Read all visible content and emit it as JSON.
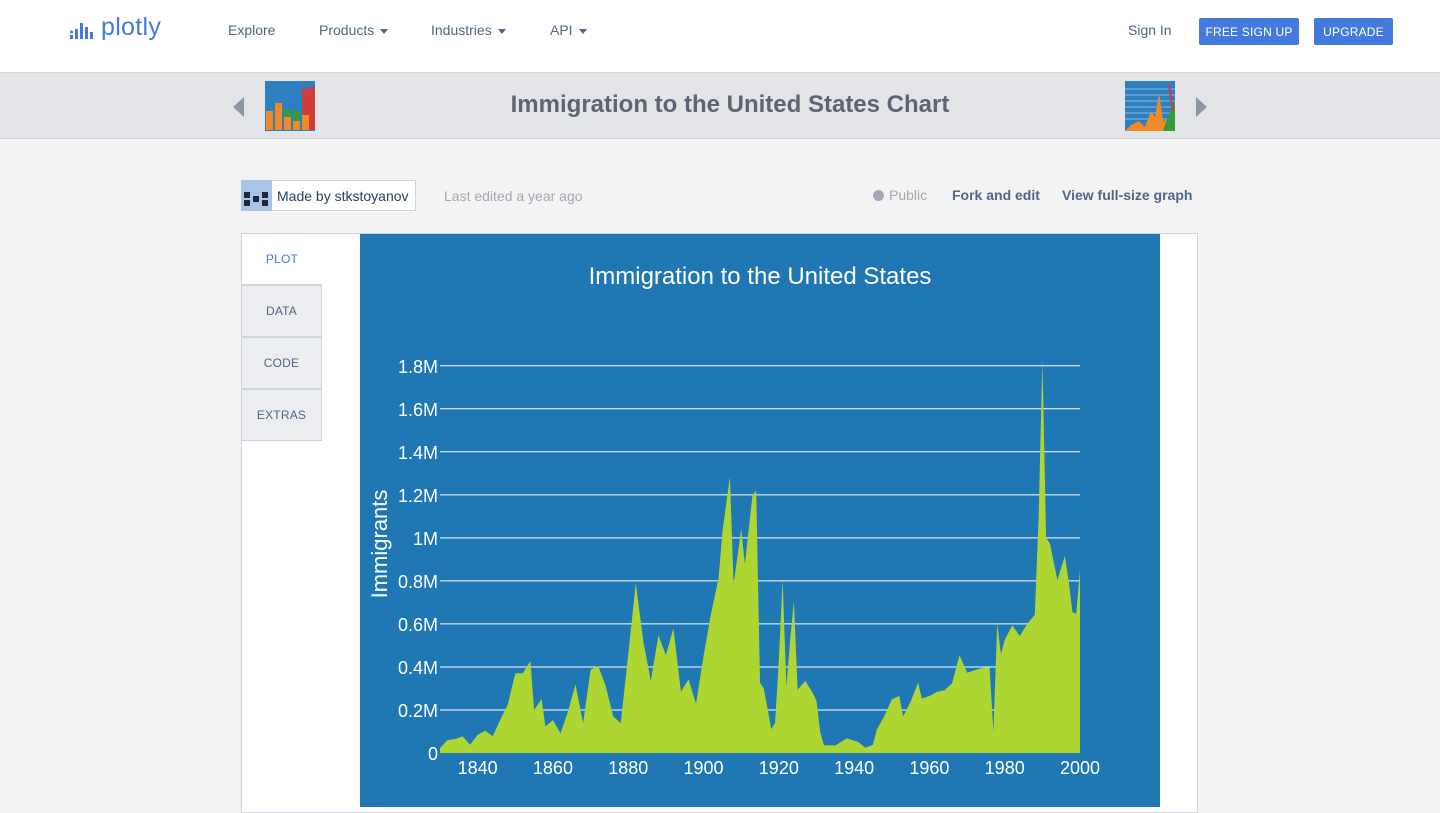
{
  "nav": {
    "logo_text": "plotly",
    "items": [
      "Explore",
      "Products",
      "Industries",
      "API"
    ],
    "sign_in": "Sign In",
    "free_signup": "FREE SIGN UP",
    "upgrade": "UPGRADE"
  },
  "subbar": {
    "title": "Immigration to the United States Chart"
  },
  "meta": {
    "made_by": "Made by stkstoyanov",
    "last_edited": "Last edited a year ago",
    "visibility": "Public",
    "fork": "Fork and edit",
    "view_full": "View full-size graph"
  },
  "tabs": [
    "PLOT",
    "DATA",
    "CODE",
    "EXTRAS"
  ],
  "colors": {
    "accent": "#447adb",
    "plot_bg": "#1f77b4",
    "area_fill": "#add633"
  },
  "chart_data": {
    "type": "area",
    "title": "Immigration to the United States",
    "xlabel": "",
    "ylabel": "Immigrants",
    "xlim": [
      1830,
      2000
    ],
    "ylim": [
      0,
      1850000
    ],
    "grid": true,
    "x_ticks": [
      "1840",
      "1860",
      "1880",
      "1900",
      "1920",
      "1940",
      "1960",
      "1980",
      "2000"
    ],
    "y_ticks": [
      "0",
      "0.2M",
      "0.4M",
      "0.6M",
      "0.8M",
      "1M",
      "1.2M",
      "1.4M",
      "1.6M",
      "1.8M"
    ],
    "series": [
      {
        "name": "Immigrants",
        "x": [
          1830,
          1832,
          1834,
          1836,
          1838,
          1840,
          1842,
          1844,
          1846,
          1848,
          1850,
          1852,
          1854,
          1855,
          1857,
          1858,
          1860,
          1862,
          1864,
          1866,
          1868,
          1870,
          1872,
          1874,
          1876,
          1878,
          1880,
          1882,
          1884,
          1886,
          1888,
          1890,
          1892,
          1894,
          1896,
          1898,
          1900,
          1902,
          1904,
          1905,
          1907,
          1908,
          1910,
          1911,
          1913,
          1914,
          1915,
          1916,
          1918,
          1919,
          1920,
          1921,
          1922,
          1923,
          1924,
          1925,
          1927,
          1929,
          1930,
          1931,
          1932,
          1935,
          1938,
          1941,
          1943,
          1945,
          1946,
          1948,
          1950,
          1952,
          1953,
          1955,
          1957,
          1958,
          1960,
          1962,
          1964,
          1966,
          1968,
          1970,
          1972,
          1974,
          1976,
          1977,
          1978,
          1979,
          1980,
          1982,
          1984,
          1986,
          1988,
          1989,
          1990,
          1991,
          1992,
          1994,
          1996,
          1997,
          1998,
          1999,
          2000
        ],
        "values": [
          23000,
          60000,
          65000,
          77000,
          38000,
          84000,
          104000,
          78000,
          154000,
          226000,
          370000,
          371000,
          428000,
          200000,
          251000,
          123000,
          153000,
          92000,
          193000,
          319000,
          139000,
          387000,
          405000,
          313000,
          170000,
          138000,
          457000,
          789000,
          519000,
          335000,
          547000,
          455000,
          580000,
          285000,
          343000,
          229000,
          449000,
          649000,
          813000,
          1027000,
          1285000,
          783000,
          1042000,
          878000,
          1198000,
          1218000,
          327000,
          299000,
          111000,
          141000,
          430000,
          805000,
          310000,
          523000,
          707000,
          294000,
          335000,
          280000,
          242000,
          97000,
          36000,
          35000,
          68000,
          52000,
          24000,
          38000,
          108000,
          171000,
          249000,
          266000,
          170000,
          238000,
          327000,
          253000,
          265000,
          284000,
          292000,
          323000,
          454000,
          373000,
          385000,
          395000,
          399000,
          100000,
          601000,
          460000,
          525000,
          594000,
          544000,
          601000,
          643000,
          1091000,
          1827000,
          1000000,
          974000,
          804000,
          916000,
          798000,
          654000,
          647000,
          850000
        ]
      }
    ]
  }
}
